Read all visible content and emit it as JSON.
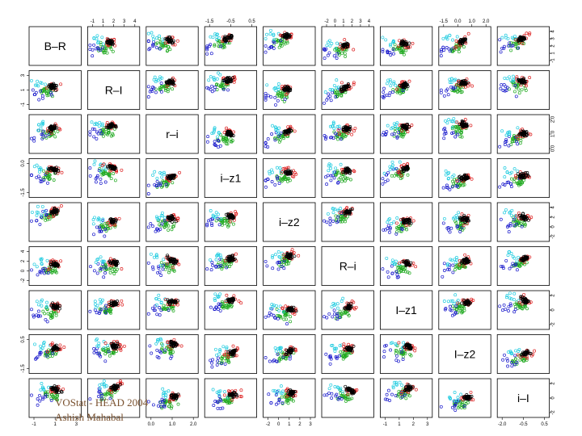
{
  "chart_data": {
    "type": "scatter",
    "variables": [
      "B–R",
      "R–I",
      "r–i",
      "i–z1",
      "i–z2",
      "R–i",
      "I–z1",
      "I–z2",
      "i–I"
    ],
    "series_colors": {
      "group1": "#000000",
      "group2": "#dd2222",
      "group3": "#22aa22",
      "group4": "#1a1acc",
      "group5": "#22cce0"
    },
    "point_marker": "open-circle",
    "axis_ticks": {
      "top": [
        [
          "-1",
          "1",
          "2",
          "3",
          "4"
        ],
        [
          "-1.5",
          "-0.5",
          "0.5"
        ],
        [
          "-2",
          "0",
          "1",
          "2",
          "3",
          "4"
        ],
        [
          "-1.5",
          "0.0",
          "1.0",
          "2.0"
        ]
      ],
      "bottom": [
        [
          "-1",
          "1",
          "3"
        ],
        [
          "0.0",
          "1.0",
          "2.0"
        ],
        [
          "-2",
          "0",
          "1",
          "2",
          "3"
        ],
        [
          "-1",
          "1",
          "2",
          "3"
        ],
        [
          "-2.0",
          "-0.5",
          "0.5"
        ]
      ],
      "left": [
        [
          "-1",
          "1",
          "3"
        ],
        [
          "-1.5",
          "0.0"
        ],
        [
          "-2",
          "0",
          "2",
          "4"
        ],
        [
          "-1.5",
          "0.5"
        ]
      ],
      "right": [
        [
          "-1",
          "1",
          "2",
          "3",
          "4"
        ],
        [
          "0.0",
          "1.0",
          "2.0"
        ],
        [
          "-2",
          "0",
          "2",
          "4"
        ],
        [
          "-2",
          "0",
          "2"
        ],
        [
          "-2",
          "0",
          "2"
        ]
      ]
    },
    "grid": false,
    "legend": "none"
  },
  "footer": {
    "line1": "VOStat - HEAD 2004",
    "line2": "Ashish Mahabal"
  }
}
